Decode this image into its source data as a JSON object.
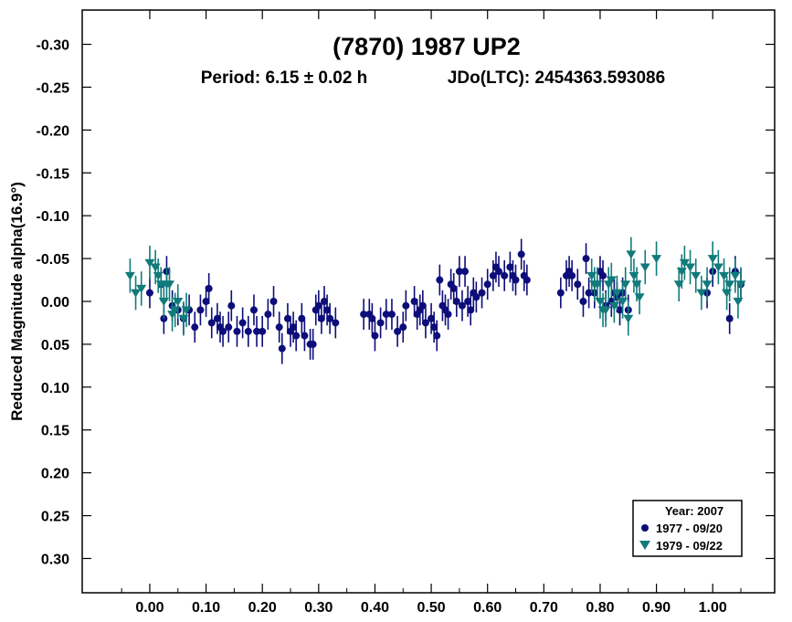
{
  "chart_data": {
    "type": "scatter",
    "title": "(7870) 1987 UP2",
    "subtitle_period": "Period: 6.15 ± 0.02 h",
    "subtitle_epoch": "JDo(LTC): 2454363.593086",
    "ylabel": "Reduced Magnitude alpha(16.9°)",
    "xlabel": "",
    "xlim": [
      -0.12,
      1.11
    ],
    "ylim": [
      0.34,
      -0.34
    ],
    "y_inverted": true,
    "xticks": [
      0.0,
      0.1,
      0.2,
      0.3,
      0.4,
      0.5,
      0.6,
      0.7,
      0.8,
      0.9,
      1.0
    ],
    "xtick_labels": [
      "0.00",
      "0.10",
      "0.20",
      "0.30",
      "0.40",
      "0.50",
      "0.60",
      "0.70",
      "0.80",
      "0.90",
      "1.00"
    ],
    "yticks": [
      -0.3,
      -0.25,
      -0.2,
      -0.15,
      -0.1,
      -0.05,
      0.0,
      0.05,
      0.1,
      0.15,
      0.2,
      0.25,
      0.3
    ],
    "ytick_labels": [
      "-0.30",
      "-0.25",
      "-0.20",
      "-0.15",
      "-0.10",
      "-0.05",
      "0.00",
      "0.05",
      "0.10",
      "0.15",
      "0.20",
      "0.25",
      "0.30"
    ],
    "legend": {
      "title": "Year: 2007",
      "position": "bottom-right",
      "entries": [
        "1977 - 09/20",
        "1979 - 09/22"
      ]
    },
    "series": [
      {
        "name": "1977 - 09/20",
        "marker": "circle",
        "color": "#0d0d7a",
        "error": 0.018,
        "points": [
          [
            0.0,
            -0.01
          ],
          [
            0.02,
            -0.02
          ],
          [
            0.025,
            0.02
          ],
          [
            0.03,
            -0.035
          ],
          [
            0.04,
            0.005
          ],
          [
            0.05,
            0.01
          ],
          [
            0.06,
            0.02
          ],
          [
            0.07,
            0.01
          ],
          [
            0.08,
            0.03
          ],
          [
            0.09,
            0.01
          ],
          [
            0.1,
            0.0
          ],
          [
            0.105,
            -0.015
          ],
          [
            0.11,
            0.025
          ],
          [
            0.12,
            0.02
          ],
          [
            0.125,
            0.03
          ],
          [
            0.13,
            0.035
          ],
          [
            0.14,
            0.03
          ],
          [
            0.145,
            0.005
          ],
          [
            0.155,
            0.035
          ],
          [
            0.165,
            0.025
          ],
          [
            0.175,
            0.035
          ],
          [
            0.185,
            0.01
          ],
          [
            0.19,
            0.035
          ],
          [
            0.2,
            0.035
          ],
          [
            0.21,
            0.015
          ],
          [
            0.22,
            0.0
          ],
          [
            0.23,
            0.03
          ],
          [
            0.235,
            0.055
          ],
          [
            0.245,
            0.02
          ],
          [
            0.25,
            0.035
          ],
          [
            0.255,
            0.03
          ],
          [
            0.26,
            0.04
          ],
          [
            0.27,
            0.02
          ],
          [
            0.275,
            0.04
          ],
          [
            0.285,
            0.05
          ],
          [
            0.29,
            0.05
          ],
          [
            0.295,
            0.01
          ],
          [
            0.3,
            0.005
          ],
          [
            0.305,
            0.02
          ],
          [
            0.31,
            0.0
          ],
          [
            0.315,
            0.01
          ],
          [
            0.32,
            0.02
          ],
          [
            0.33,
            0.025
          ],
          [
            0.38,
            0.015
          ],
          [
            0.39,
            0.015
          ],
          [
            0.395,
            0.02
          ],
          [
            0.4,
            0.04
          ],
          [
            0.41,
            0.025
          ],
          [
            0.42,
            0.015
          ],
          [
            0.43,
            0.015
          ],
          [
            0.44,
            0.035
          ],
          [
            0.45,
            0.03
          ],
          [
            0.455,
            0.005
          ],
          [
            0.47,
            0.0
          ],
          [
            0.475,
            0.015
          ],
          [
            0.48,
            0.01
          ],
          [
            0.485,
            0.005
          ],
          [
            0.49,
            0.025
          ],
          [
            0.5,
            0.02
          ],
          [
            0.505,
            0.03
          ],
          [
            0.51,
            0.04
          ],
          [
            0.515,
            -0.025
          ],
          [
            0.52,
            0.005
          ],
          [
            0.525,
            0.01
          ],
          [
            0.53,
            0.015
          ],
          [
            0.535,
            -0.02
          ],
          [
            0.54,
            -0.015
          ],
          [
            0.545,
            0.0
          ],
          [
            0.55,
            -0.035
          ],
          [
            0.555,
            0.005
          ],
          [
            0.56,
            -0.035
          ],
          [
            0.565,
            0.0
          ],
          [
            0.57,
            0.01
          ],
          [
            0.575,
            -0.01
          ],
          [
            0.58,
            -0.005
          ],
          [
            0.59,
            -0.01
          ],
          [
            0.6,
            -0.02
          ],
          [
            0.61,
            -0.03
          ],
          [
            0.615,
            -0.04
          ],
          [
            0.62,
            -0.035
          ],
          [
            0.63,
            -0.03
          ],
          [
            0.64,
            -0.04
          ],
          [
            0.645,
            -0.03
          ],
          [
            0.65,
            -0.025
          ],
          [
            0.66,
            -0.055
          ],
          [
            0.665,
            -0.03
          ],
          [
            0.67,
            -0.025
          ],
          [
            0.73,
            -0.01
          ],
          [
            0.74,
            -0.03
          ],
          [
            0.745,
            -0.035
          ],
          [
            0.75,
            -0.03
          ],
          [
            0.76,
            -0.02
          ],
          [
            0.77,
            0.0
          ],
          [
            0.775,
            -0.05
          ],
          [
            0.78,
            -0.01
          ],
          [
            0.79,
            -0.01
          ],
          [
            0.8,
            -0.035
          ],
          [
            0.805,
            -0.03
          ],
          [
            0.81,
            0.005
          ],
          [
            0.82,
            0.0
          ],
          [
            0.825,
            -0.01
          ],
          [
            0.83,
            -0.005
          ],
          [
            0.835,
            0.01
          ],
          [
            0.84,
            -0.01
          ],
          [
            0.85,
            0.01
          ],
          [
            0.99,
            -0.01
          ],
          [
            1.0,
            -0.035
          ],
          [
            1.03,
            0.02
          ],
          [
            1.04,
            -0.035
          ],
          [
            1.05,
            -0.02
          ]
        ]
      },
      {
        "name": "1979 - 09/22",
        "marker": "triangle-down",
        "color": "#117a7a",
        "error": 0.02,
        "points": [
          [
            -0.035,
            -0.03
          ],
          [
            -0.025,
            -0.01
          ],
          [
            -0.015,
            -0.015
          ],
          [
            0.0,
            -0.045
          ],
          [
            0.01,
            -0.04
          ],
          [
            0.015,
            -0.03
          ],
          [
            0.02,
            -0.02
          ],
          [
            0.025,
            0.0
          ],
          [
            0.03,
            -0.02
          ],
          [
            0.035,
            -0.02
          ],
          [
            0.04,
            0.015
          ],
          [
            0.045,
            0.01
          ],
          [
            0.05,
            0.0
          ],
          [
            0.06,
            0.02
          ],
          [
            0.065,
            0.01
          ],
          [
            0.785,
            -0.03
          ],
          [
            0.79,
            -0.02
          ],
          [
            0.795,
            -0.02
          ],
          [
            0.8,
            0.0
          ],
          [
            0.805,
            0.01
          ],
          [
            0.81,
            0.01
          ],
          [
            0.815,
            -0.02
          ],
          [
            0.82,
            -0.025
          ],
          [
            0.825,
            0.005
          ],
          [
            0.83,
            -0.01
          ],
          [
            0.84,
            0.0
          ],
          [
            0.845,
            -0.02
          ],
          [
            0.85,
            0.02
          ],
          [
            0.855,
            -0.055
          ],
          [
            0.86,
            -0.03
          ],
          [
            0.865,
            -0.02
          ],
          [
            0.87,
            -0.005
          ],
          [
            0.88,
            -0.04
          ],
          [
            0.9,
            -0.05
          ],
          [
            0.94,
            -0.02
          ],
          [
            0.945,
            -0.035
          ],
          [
            0.95,
            -0.045
          ],
          [
            0.96,
            -0.04
          ],
          [
            0.97,
            -0.03
          ],
          [
            0.98,
            -0.01
          ],
          [
            0.99,
            -0.02
          ],
          [
            1.0,
            -0.05
          ],
          [
            1.01,
            -0.04
          ],
          [
            1.02,
            -0.03
          ],
          [
            1.025,
            -0.01
          ],
          [
            1.03,
            -0.02
          ],
          [
            1.04,
            -0.03
          ],
          [
            1.045,
            0.0
          ],
          [
            1.05,
            -0.02
          ]
        ]
      }
    ]
  }
}
